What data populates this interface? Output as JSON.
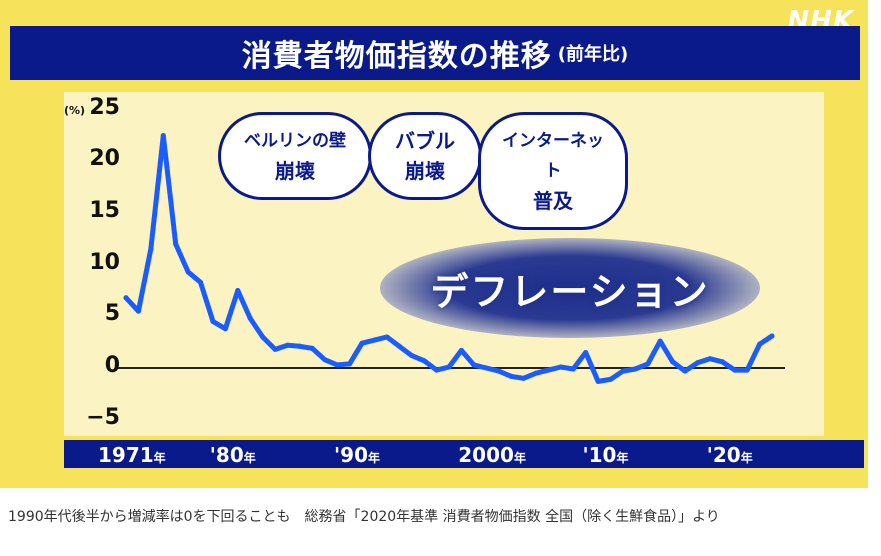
{
  "brand": "NHK",
  "title": {
    "main": "消費者物価指数の推移",
    "sub": "(前年比)"
  },
  "annotations": {
    "events": [
      "ベルリンの壁\n崩壊",
      "バブル\n崩壊",
      "インターネット\n普及"
    ],
    "deflation": "デフレーション"
  },
  "caption": "1990年代後半から増減率は0を下回ることも　総務省「2020年基準 消費者物価指数 全国（除く生鮮食品）」より",
  "colors": {
    "line": "#1a5cff",
    "background": "#f7e25c",
    "panel": "#fbf3c2",
    "navy": "#0a1a8a"
  },
  "chart_data": {
    "type": "line",
    "title": "消費者物価指数の推移",
    "ylabel": "(%)",
    "ylim": [
      -5,
      25
    ],
    "yticks": [
      25,
      20,
      15,
      10,
      5,
      0,
      -5
    ],
    "ytick_labels": [
      "25",
      "20",
      "15",
      "10",
      "5",
      "0",
      "−5"
    ],
    "xticks": [
      {
        "year": 1971,
        "label": "1971",
        "suffix": "年"
      },
      {
        "year": 1980,
        "label": "'80",
        "suffix": "年"
      },
      {
        "year": 1990,
        "label": "'90",
        "suffix": "年"
      },
      {
        "year": 2000,
        "label": "2000",
        "suffix": "年"
      },
      {
        "year": 2010,
        "label": "'10",
        "suffix": "年"
      },
      {
        "year": 2020,
        "label": "'20",
        "suffix": "年"
      }
    ],
    "x": [
      1971,
      1972,
      1973,
      1974,
      1975,
      1976,
      1977,
      1978,
      1979,
      1980,
      1981,
      1982,
      1983,
      1984,
      1985,
      1986,
      1987,
      1988,
      1989,
      1990,
      1991,
      1992,
      1993,
      1994,
      1995,
      1996,
      1997,
      1998,
      1999,
      2000,
      2001,
      2002,
      2003,
      2004,
      2005,
      2006,
      2007,
      2008,
      2009,
      2010,
      2011,
      2012,
      2013,
      2014,
      2015,
      2016,
      2017,
      2018,
      2019,
      2020,
      2021,
      2022,
      2023
    ],
    "series": [
      {
        "values": [
          6.8,
          5.5,
          11.5,
          22.5,
          12.0,
          9.3,
          8.3,
          4.5,
          3.8,
          7.5,
          4.8,
          3.0,
          1.8,
          2.2,
          2.1,
          1.9,
          0.8,
          0.3,
          0.4,
          2.4,
          2.7,
          3.0,
          2.1,
          1.2,
          0.7,
          -0.2,
          0.1,
          1.7,
          0.3,
          0.0,
          -0.3,
          -0.8,
          -1.0,
          -0.5,
          -0.2,
          0.1,
          -0.1,
          1.5,
          -1.3,
          -1.1,
          -0.3,
          -0.1,
          0.4,
          2.6,
          0.6,
          -0.3,
          0.5,
          0.9,
          0.6,
          -0.2,
          -0.2,
          2.3,
          3.1
        ]
      }
    ]
  }
}
